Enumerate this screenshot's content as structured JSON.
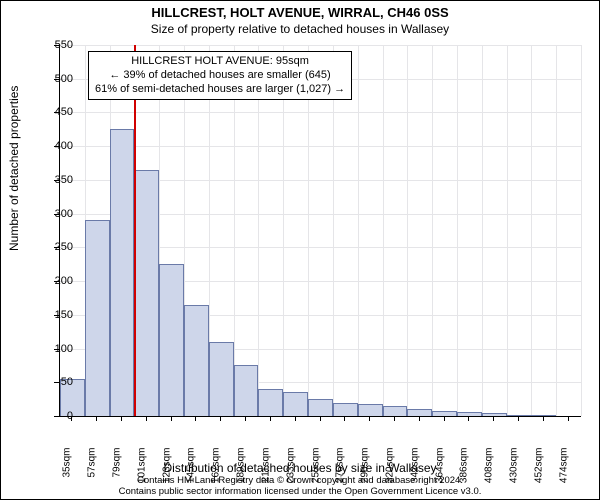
{
  "title": "HILLCREST, HOLT AVENUE, WIRRAL, CH46 0SS",
  "subtitle": "Size of property relative to detached houses in Wallasey",
  "ylabel": "Number of detached properties",
  "xlabel": "Distribution of detached houses by size in Wallasey",
  "credit1": "Contains HM Land Registry data © Crown copyright and database right 2024.",
  "credit2": "Contains public sector information licensed under the Open Government Licence v3.0.",
  "chart": {
    "type": "histogram",
    "background_color": "#ffffff",
    "grid_color": "#e5e5e8",
    "axis_color": "#000000",
    "bar_fill": "#ced6ea",
    "bar_border": "#6a7aa8",
    "refline_color": "#d00000",
    "annot_border": "#000000",
    "label_fontsize": 11,
    "title_fontsize": 13,
    "ylim": [
      0,
      550
    ],
    "yticks": [
      0,
      50,
      100,
      150,
      200,
      250,
      300,
      350,
      400,
      450,
      500,
      550
    ],
    "xtick_labels": [
      "35sqm",
      "57sqm",
      "79sqm",
      "101sqm",
      "123sqm",
      "145sqm",
      "167sqm",
      "189sqm",
      "211sqm",
      "233sqm",
      "255sqm",
      "276sqm",
      "298sqm",
      "320sqm",
      "342sqm",
      "364sqm",
      "386sqm",
      "408sqm",
      "430sqm",
      "452sqm",
      "474sqm"
    ],
    "values": [
      55,
      290,
      425,
      365,
      225,
      165,
      110,
      75,
      40,
      35,
      25,
      20,
      18,
      15,
      10,
      8,
      6,
      5,
      2,
      2,
      0
    ],
    "refline_index": 3,
    "annot_line1": "HILLCREST HOLT AVENUE: 95sqm",
    "annot_line2": "← 39% of detached houses are smaller (645)",
    "annot_line3": "61% of semi-detached houses are larger (1,027) →"
  }
}
